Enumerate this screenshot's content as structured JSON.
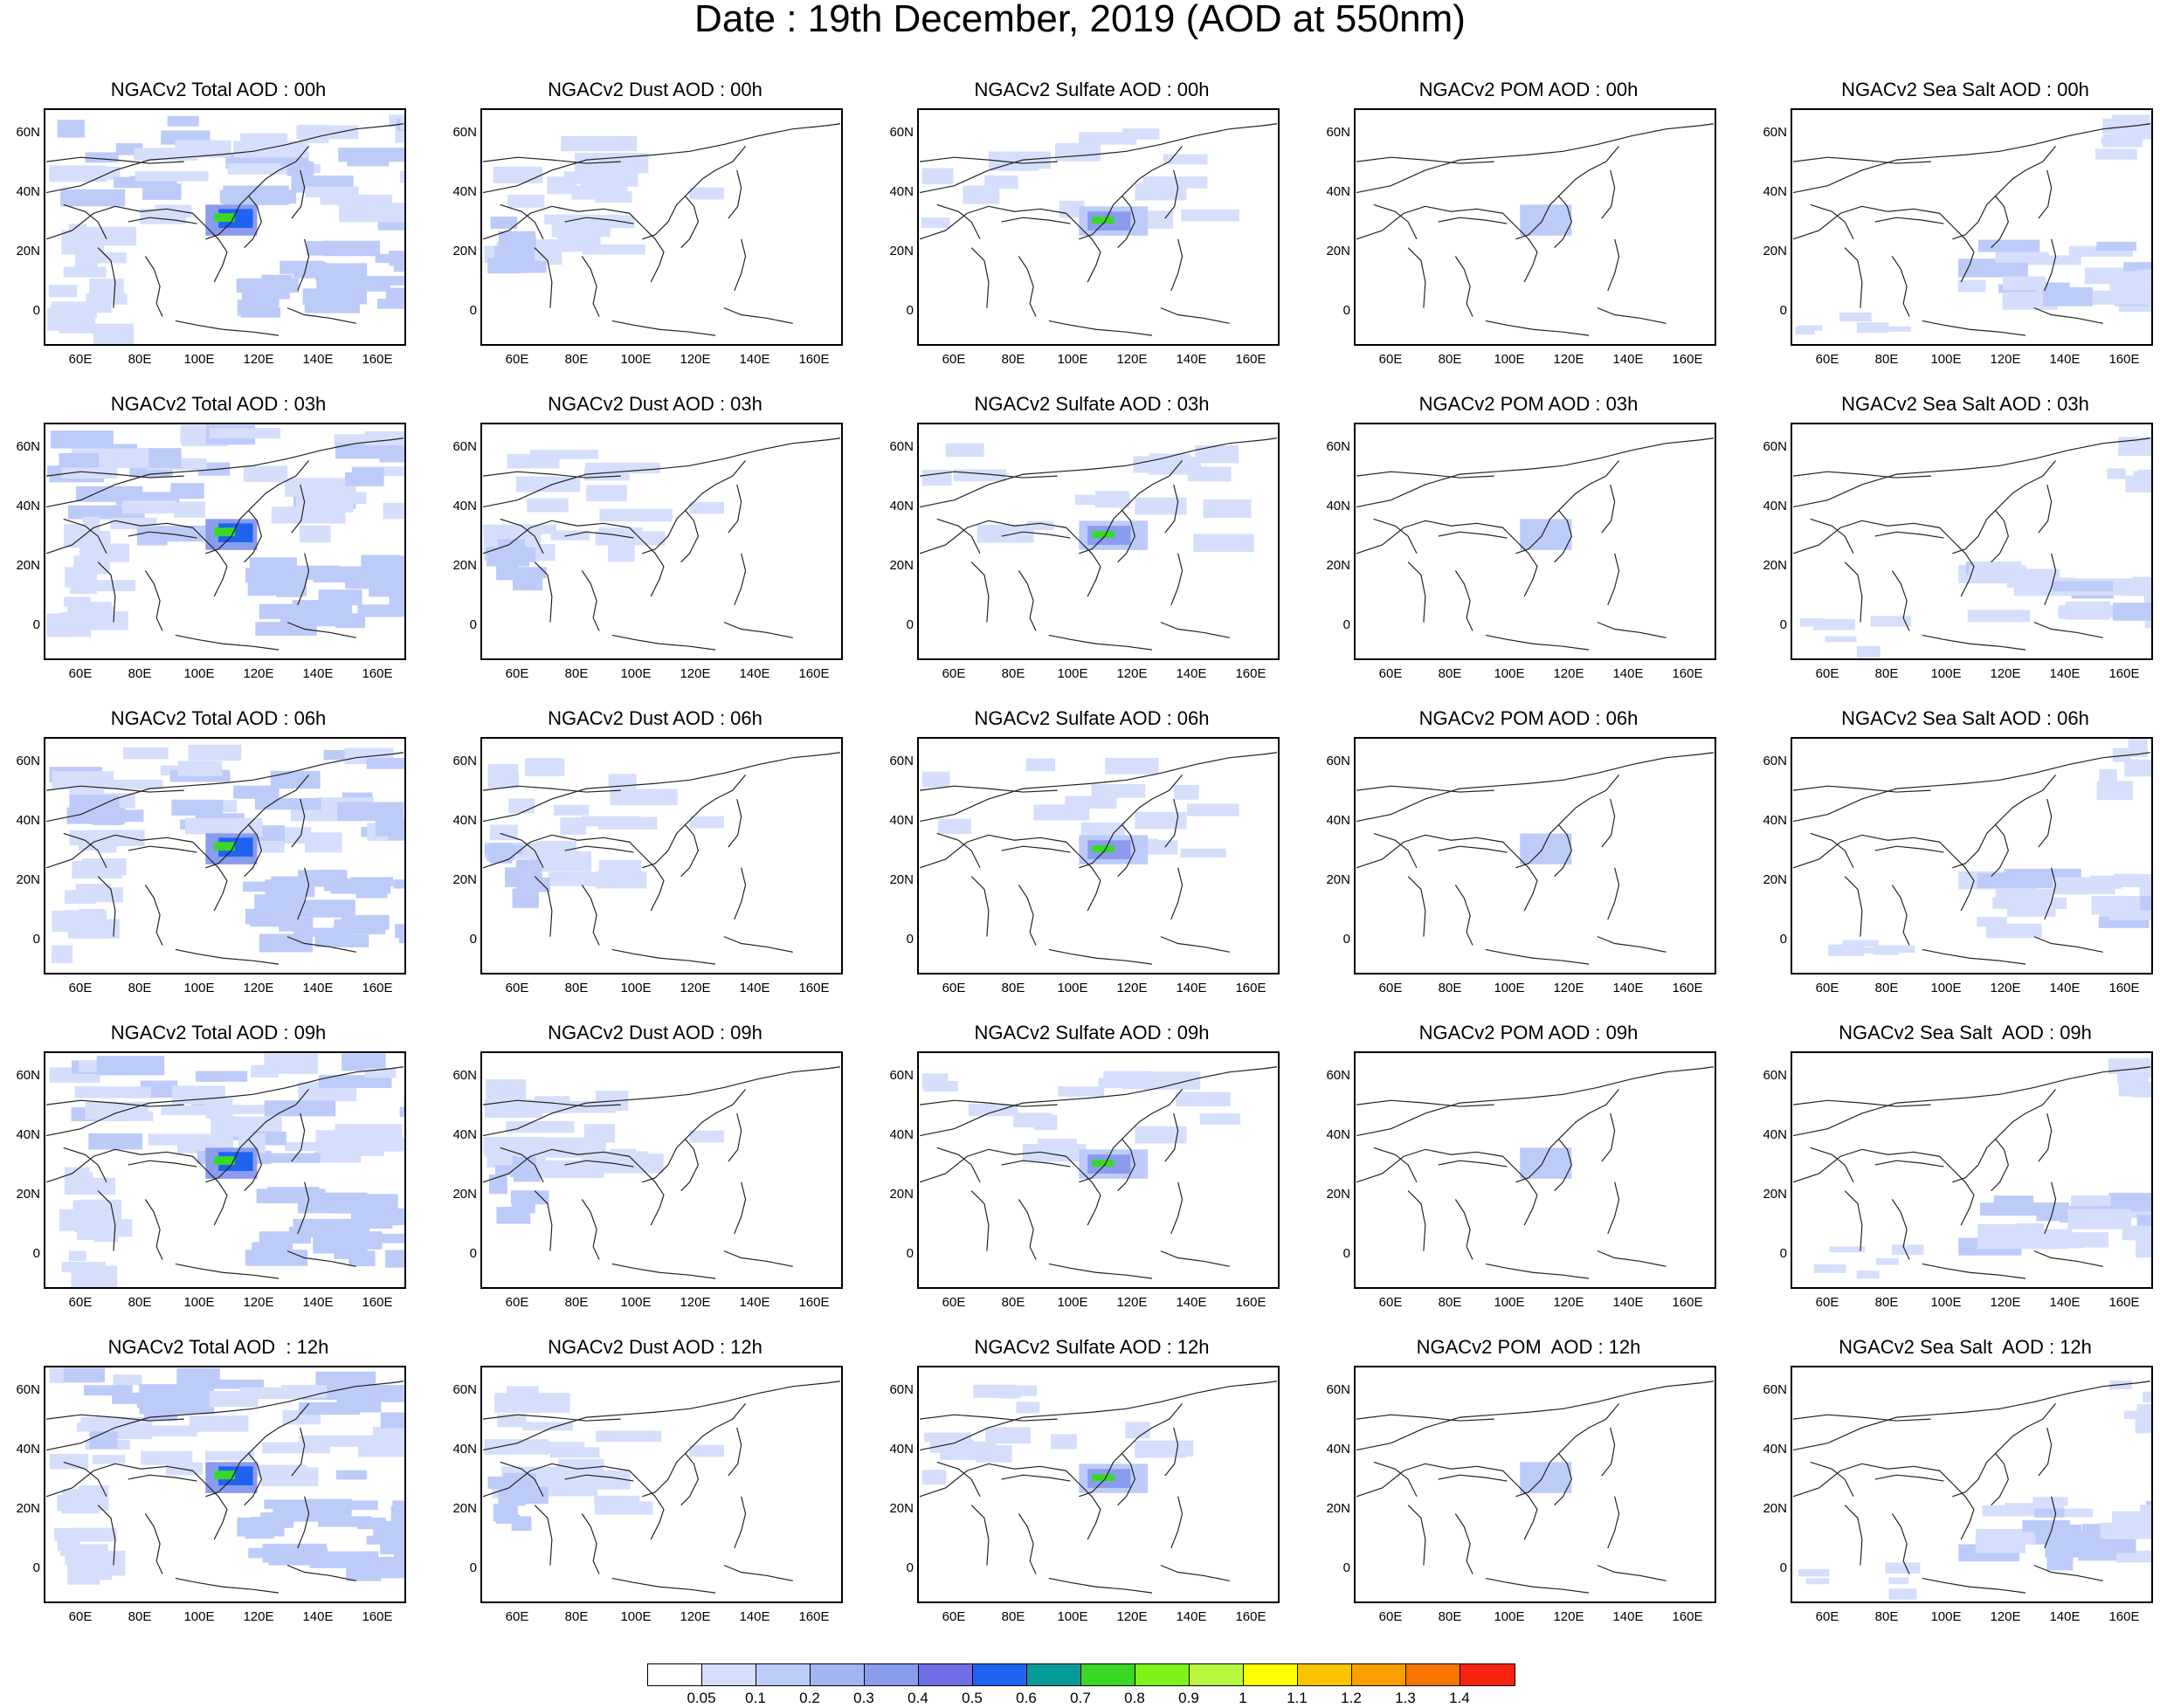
{
  "title": "Date : 19th December, 2019 (AOD at 550nm)",
  "panels": [
    [
      "NGACv2 Total AOD : 00h",
      "NGACv2 Dust AOD : 00h",
      "NGACv2 Sulfate AOD : 00h",
      "NGACv2 POM AOD : 00h",
      "NGACv2 Sea Salt AOD : 00h"
    ],
    [
      "NGACv2 Total AOD : 03h",
      "NGACv2 Dust AOD : 03h",
      "NGACv2 Sulfate AOD : 03h",
      "NGACv2 POM AOD : 03h",
      "NGACv2 Sea Salt AOD : 03h"
    ],
    [
      "NGACv2 Total AOD : 06h",
      "NGACv2 Dust AOD : 06h",
      "NGACv2 Sulfate AOD : 06h",
      "NGACv2 POM AOD : 06h",
      "NGACv2 Sea Salt AOD : 06h"
    ],
    [
      "NGACv2 Total AOD : 09h",
      "NGACv2 Dust AOD : 09h",
      "NGACv2 Sulfate AOD : 09h",
      "NGACv2 POM AOD : 09h",
      "NGACv2 Sea Salt  AOD : 09h"
    ],
    [
      "NGACv2 Total AOD  : 12h",
      "NGACv2 Dust AOD : 12h",
      "NGACv2 Sulfate AOD : 12h",
      "NGACv2 POM  AOD : 12h",
      "NGACv2 Sea Salt  AOD : 12h"
    ]
  ],
  "lat_labels": [
    "60N",
    "40N",
    "20N",
    "0"
  ],
  "lon_labels": [
    "60E",
    "80E",
    "100E",
    "120E",
    "140E",
    "160E"
  ],
  "colorbar": {
    "labels": [
      "0.05",
      "0.1",
      "0.2",
      "0.3",
      "0.4",
      "0.5",
      "0.6",
      "0.7",
      "0.8",
      "0.9",
      "1",
      "1.1",
      "1.2",
      "1.3",
      "1.4"
    ],
    "colors": [
      "#ffffff",
      "#d5dffb",
      "#bccbf8",
      "#a3b6f3",
      "#8a9cee",
      "#6f6ee6",
      "#1e64f0",
      "#079a9a",
      "#39d827",
      "#7ff21a",
      "#b7f73f",
      "#ffff00",
      "#fbc300",
      "#f9a000",
      "#f87600",
      "#f7240d"
    ]
  }
}
